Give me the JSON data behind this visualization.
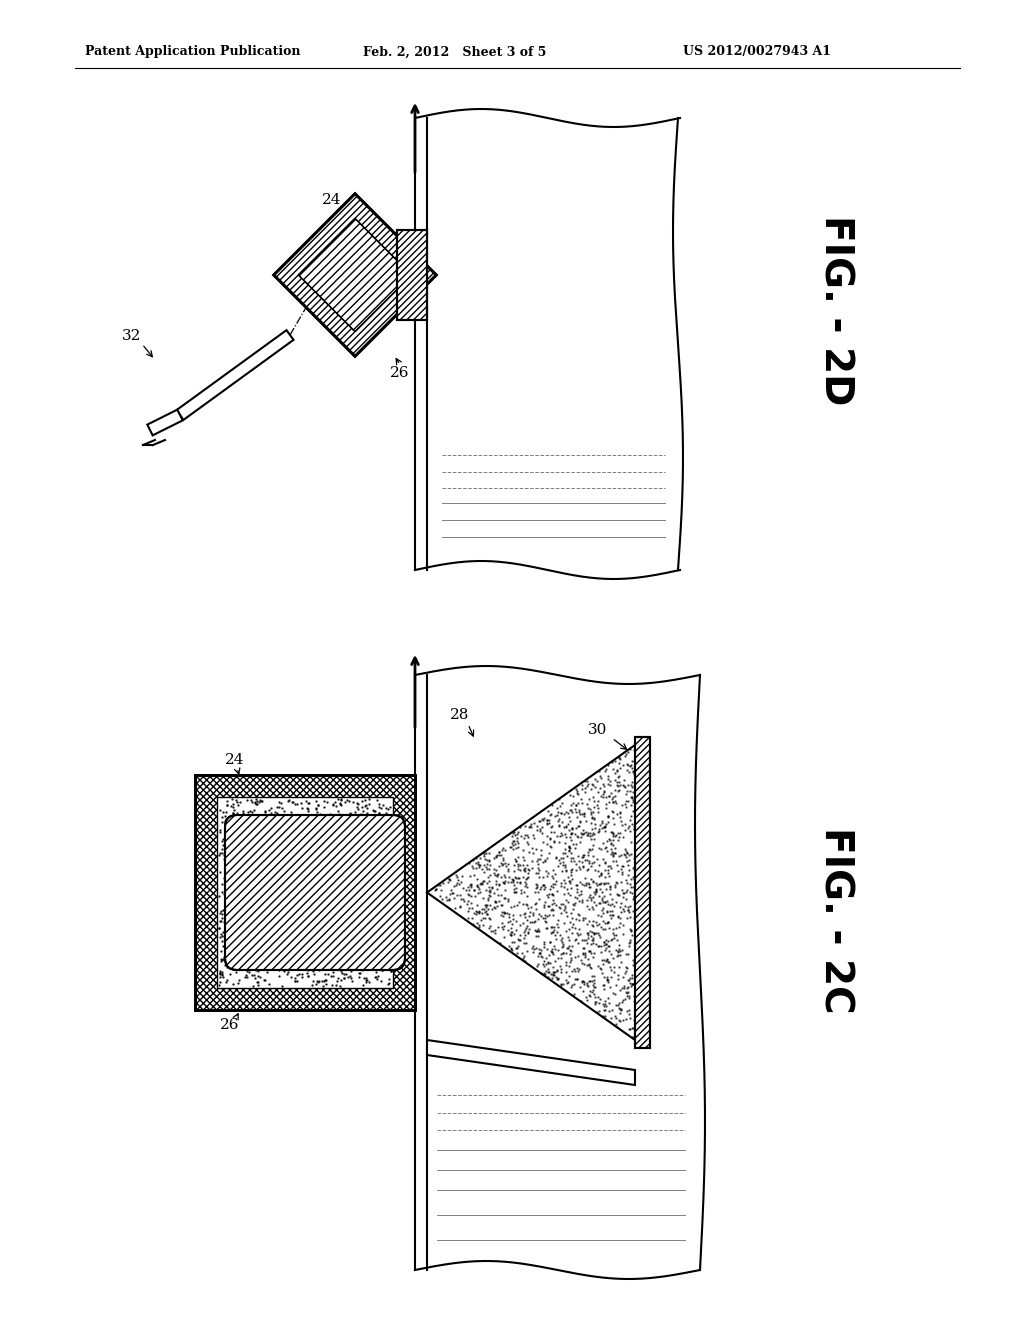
{
  "bg_color": "#ffffff",
  "header_left": "Patent Application Publication",
  "header_center": "Feb. 2, 2012   Sheet 3 of 5",
  "header_right": "US 2012/0027943 A1",
  "fig_label_top": "FIG. - 2D",
  "fig_label_bottom": "FIG. - 2C",
  "label_24_top": "24",
  "label_26_top": "26",
  "label_32": "32",
  "label_24_bot": "24",
  "label_26_bot": "26",
  "label_28": "28",
  "label_30": "30"
}
